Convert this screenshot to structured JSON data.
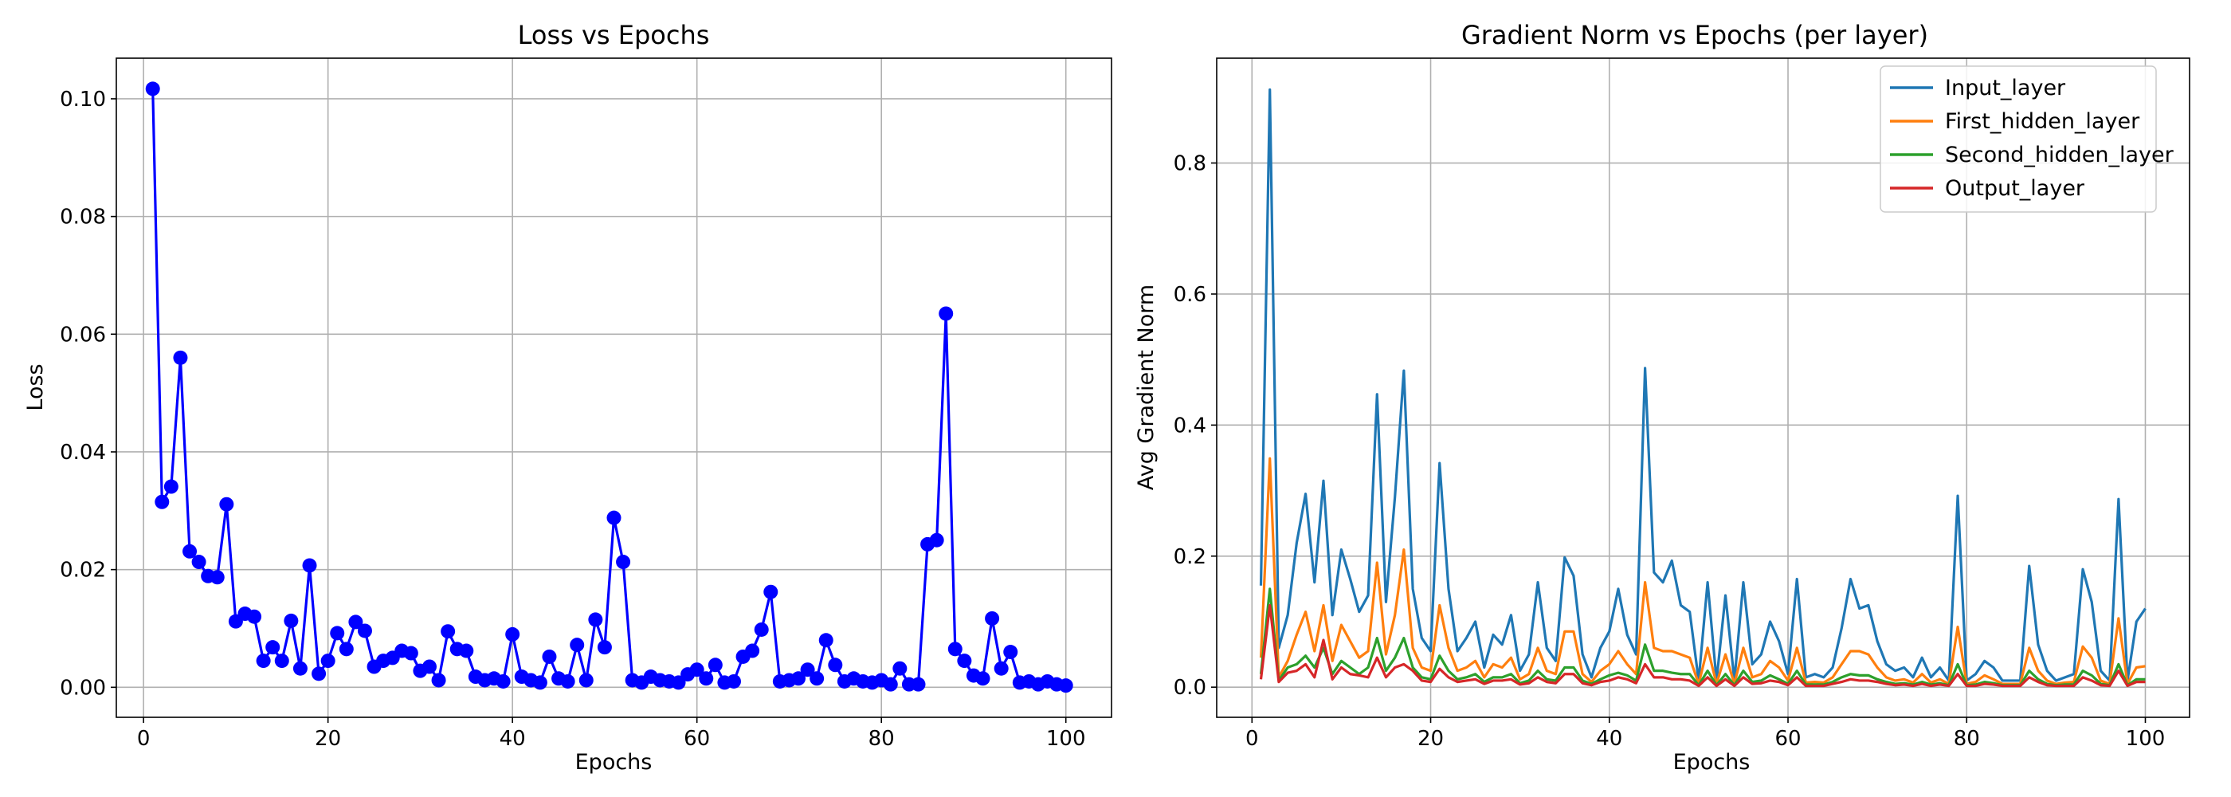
{
  "chart_data": [
    {
      "type": "line",
      "title": "Loss vs Epochs",
      "xlabel": "Epochs",
      "ylabel": "Loss",
      "xlim": [
        -2.95,
        104.95
      ],
      "ylim": [
        -0.0051,
        0.1069
      ],
      "xticks": [
        0,
        20,
        40,
        60,
        80,
        100
      ],
      "xtick_labels": [
        "0",
        "20",
        "40",
        "60",
        "80",
        "100"
      ],
      "yticks": [
        0.0,
        0.02,
        0.04,
        0.06,
        0.08,
        0.1
      ],
      "ytick_labels": [
        "0.00",
        "0.02",
        "0.04",
        "0.06",
        "0.08",
        "0.10"
      ],
      "grid": true,
      "markers": true,
      "x": [
        1,
        2,
        3,
        4,
        5,
        6,
        7,
        8,
        9,
        10,
        11,
        12,
        13,
        14,
        15,
        16,
        17,
        18,
        19,
        20,
        21,
        22,
        23,
        24,
        25,
        26,
        27,
        28,
        29,
        30,
        31,
        32,
        33,
        34,
        35,
        36,
        37,
        38,
        39,
        40,
        41,
        42,
        43,
        44,
        45,
        46,
        47,
        48,
        49,
        50,
        51,
        52,
        53,
        54,
        55,
        56,
        57,
        58,
        59,
        60,
        61,
        62,
        63,
        64,
        65,
        66,
        67,
        68,
        69,
        70,
        71,
        72,
        73,
        74,
        75,
        76,
        77,
        78,
        79,
        80,
        81,
        82,
        83,
        84,
        85,
        86,
        87,
        88,
        89,
        90,
        91,
        92,
        93,
        94,
        95,
        96,
        97,
        98,
        99,
        100
      ],
      "series": [
        {
          "color": "#0000ff",
          "values": [
            0.1017,
            0.0315,
            0.0341,
            0.056,
            0.0231,
            0.0213,
            0.0189,
            0.0187,
            0.0311,
            0.0112,
            0.0125,
            0.012,
            0.0045,
            0.0068,
            0.0045,
            0.0113,
            0.0032,
            0.0207,
            0.0023,
            0.0045,
            0.0092,
            0.0065,
            0.0111,
            0.0096,
            0.0035,
            0.0045,
            0.005,
            0.0062,
            0.0058,
            0.0028,
            0.0035,
            0.0012,
            0.0095,
            0.0065,
            0.0062,
            0.0018,
            0.0012,
            0.0015,
            0.001,
            0.009,
            0.0018,
            0.0012,
            0.0008,
            0.0052,
            0.0015,
            0.001,
            0.0072,
            0.0012,
            0.0115,
            0.0068,
            0.0288,
            0.0213,
            0.0012,
            0.0008,
            0.0018,
            0.0012,
            0.001,
            0.0008,
            0.0022,
            0.003,
            0.0015,
            0.0038,
            0.0008,
            0.001,
            0.0052,
            0.0062,
            0.0098,
            0.0162,
            0.001,
            0.0012,
            0.0015,
            0.003,
            0.0015,
            0.008,
            0.0038,
            0.001,
            0.0015,
            0.001,
            0.0008,
            0.0012,
            0.0005,
            0.0032,
            0.0005,
            0.0005,
            0.0243,
            0.025,
            0.0635,
            0.0065,
            0.0045,
            0.002,
            0.0015,
            0.0117,
            0.0032,
            0.006,
            0.0008,
            0.001,
            0.0005,
            0.001,
            0.0005,
            0.0003
          ]
        }
      ]
    },
    {
      "type": "line",
      "title": "Gradient Norm vs Epochs (per layer)",
      "xlabel": "Epochs",
      "ylabel": "Avg Gradient Norm",
      "xlim": [
        -3.95,
        104.95
      ],
      "ylim": [
        -0.046,
        0.96
      ],
      "xticks": [
        0,
        20,
        40,
        60,
        80,
        100
      ],
      "xtick_labels": [
        "0",
        "20",
        "40",
        "60",
        "80",
        "100"
      ],
      "yticks": [
        0.0,
        0.2,
        0.4,
        0.6,
        0.8
      ],
      "ytick_labels": [
        "0.0",
        "0.2",
        "0.4",
        "0.6",
        "0.8"
      ],
      "grid": true,
      "legend_position": "top-right",
      "x": [
        1,
        2,
        3,
        4,
        5,
        6,
        7,
        8,
        9,
        10,
        11,
        12,
        13,
        14,
        15,
        16,
        17,
        18,
        19,
        20,
        21,
        22,
        23,
        24,
        25,
        26,
        27,
        28,
        29,
        30,
        31,
        32,
        33,
        34,
        35,
        36,
        37,
        38,
        39,
        40,
        41,
        42,
        43,
        44,
        45,
        46,
        47,
        48,
        49,
        50,
        51,
        52,
        53,
        54,
        55,
        56,
        57,
        58,
        59,
        60,
        61,
        62,
        63,
        64,
        65,
        66,
        67,
        68,
        69,
        70,
        71,
        72,
        73,
        74,
        75,
        76,
        77,
        78,
        79,
        80,
        81,
        82,
        83,
        84,
        85,
        86,
        87,
        88,
        89,
        90,
        91,
        92,
        93,
        94,
        95,
        96,
        97,
        98,
        99,
        100
      ],
      "series": [
        {
          "name": "Input_layer",
          "color": "#1f77b4",
          "values": [
            0.155,
            0.912,
            0.06,
            0.11,
            0.22,
            0.295,
            0.16,
            0.315,
            0.11,
            0.21,
            0.165,
            0.115,
            0.14,
            0.447,
            0.13,
            0.29,
            0.483,
            0.15,
            0.075,
            0.055,
            0.342,
            0.15,
            0.055,
            0.075,
            0.1,
            0.03,
            0.08,
            0.065,
            0.11,
            0.025,
            0.05,
            0.16,
            0.06,
            0.04,
            0.198,
            0.17,
            0.05,
            0.015,
            0.06,
            0.085,
            0.15,
            0.08,
            0.05,
            0.487,
            0.175,
            0.16,
            0.193,
            0.125,
            0.115,
            0.01,
            0.16,
            0.01,
            0.14,
            0.01,
            0.16,
            0.035,
            0.05,
            0.1,
            0.07,
            0.02,
            0.165,
            0.015,
            0.02,
            0.015,
            0.03,
            0.09,
            0.165,
            0.12,
            0.125,
            0.07,
            0.035,
            0.025,
            0.03,
            0.015,
            0.045,
            0.015,
            0.03,
            0.01,
            0.292,
            0.01,
            0.02,
            0.04,
            0.03,
            0.01,
            0.01,
            0.01,
            0.185,
            0.065,
            0.025,
            0.01,
            0.015,
            0.02,
            0.18,
            0.13,
            0.025,
            0.01,
            0.287,
            0.01,
            0.1,
            0.12
          ]
        },
        {
          "name": "First_hidden_layer",
          "color": "#ff7f0e",
          "values": [
            0.045,
            0.349,
            0.015,
            0.04,
            0.08,
            0.115,
            0.055,
            0.125,
            0.04,
            0.095,
            0.07,
            0.045,
            0.055,
            0.19,
            0.05,
            0.11,
            0.21,
            0.06,
            0.03,
            0.025,
            0.125,
            0.06,
            0.025,
            0.03,
            0.04,
            0.015,
            0.035,
            0.03,
            0.045,
            0.012,
            0.02,
            0.06,
            0.025,
            0.02,
            0.085,
            0.085,
            0.02,
            0.008,
            0.025,
            0.035,
            0.055,
            0.035,
            0.02,
            0.16,
            0.06,
            0.055,
            0.055,
            0.05,
            0.045,
            0.005,
            0.06,
            0.005,
            0.05,
            0.005,
            0.06,
            0.015,
            0.02,
            0.04,
            0.03,
            0.01,
            0.06,
            0.007,
            0.008,
            0.007,
            0.015,
            0.035,
            0.055,
            0.055,
            0.05,
            0.03,
            0.015,
            0.01,
            0.012,
            0.007,
            0.02,
            0.007,
            0.012,
            0.005,
            0.092,
            0.005,
            0.008,
            0.018,
            0.012,
            0.005,
            0.005,
            0.005,
            0.06,
            0.025,
            0.01,
            0.005,
            0.007,
            0.008,
            0.062,
            0.045,
            0.01,
            0.005,
            0.105,
            0.005,
            0.03,
            0.032
          ]
        },
        {
          "name": "Second_hidden_layer",
          "color": "#2ca02c",
          "values": [
            0.02,
            0.15,
            0.01,
            0.03,
            0.035,
            0.048,
            0.03,
            0.06,
            0.02,
            0.04,
            0.03,
            0.02,
            0.03,
            0.075,
            0.025,
            0.045,
            0.075,
            0.03,
            0.015,
            0.012,
            0.048,
            0.025,
            0.012,
            0.015,
            0.02,
            0.008,
            0.015,
            0.015,
            0.02,
            0.006,
            0.01,
            0.025,
            0.012,
            0.01,
            0.03,
            0.03,
            0.01,
            0.005,
            0.012,
            0.018,
            0.022,
            0.018,
            0.01,
            0.065,
            0.025,
            0.025,
            0.022,
            0.02,
            0.02,
            0.003,
            0.025,
            0.003,
            0.02,
            0.003,
            0.025,
            0.008,
            0.01,
            0.018,
            0.012,
            0.005,
            0.025,
            0.004,
            0.004,
            0.004,
            0.008,
            0.015,
            0.02,
            0.018,
            0.018,
            0.012,
            0.008,
            0.005,
            0.006,
            0.004,
            0.008,
            0.004,
            0.006,
            0.003,
            0.035,
            0.003,
            0.004,
            0.008,
            0.006,
            0.003,
            0.003,
            0.003,
            0.025,
            0.012,
            0.005,
            0.003,
            0.004,
            0.004,
            0.025,
            0.018,
            0.005,
            0.003,
            0.035,
            0.003,
            0.012,
            0.012
          ]
        },
        {
          "name": "Output_layer",
          "color": "#d62728",
          "values": [
            0.012,
            0.125,
            0.008,
            0.022,
            0.025,
            0.035,
            0.015,
            0.072,
            0.012,
            0.03,
            0.02,
            0.018,
            0.015,
            0.045,
            0.015,
            0.03,
            0.035,
            0.025,
            0.01,
            0.008,
            0.028,
            0.015,
            0.008,
            0.01,
            0.012,
            0.005,
            0.01,
            0.01,
            0.012,
            0.004,
            0.006,
            0.015,
            0.008,
            0.006,
            0.02,
            0.02,
            0.006,
            0.003,
            0.008,
            0.01,
            0.015,
            0.012,
            0.006,
            0.035,
            0.015,
            0.015,
            0.012,
            0.012,
            0.01,
            0.002,
            0.015,
            0.002,
            0.012,
            0.002,
            0.015,
            0.005,
            0.006,
            0.01,
            0.008,
            0.003,
            0.015,
            0.002,
            0.002,
            0.002,
            0.005,
            0.008,
            0.012,
            0.01,
            0.01,
            0.008,
            0.005,
            0.003,
            0.004,
            0.002,
            0.005,
            0.002,
            0.004,
            0.002,
            0.02,
            0.002,
            0.002,
            0.005,
            0.004,
            0.002,
            0.002,
            0.002,
            0.015,
            0.008,
            0.003,
            0.002,
            0.002,
            0.002,
            0.015,
            0.01,
            0.003,
            0.002,
            0.025,
            0.002,
            0.008,
            0.008
          ]
        }
      ]
    }
  ]
}
